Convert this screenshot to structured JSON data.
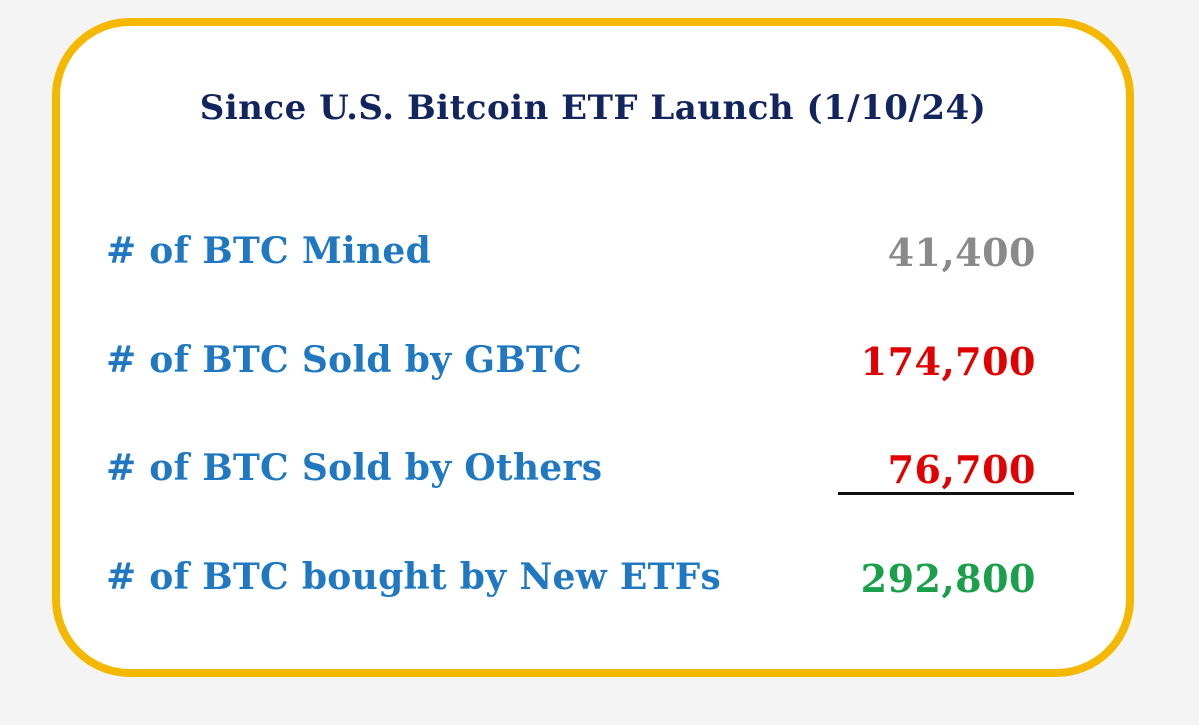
{
  "title": "Since U.S. Bitcoin ETF Launch (1/10/24)",
  "rows": [
    {
      "label": "# of BTC Mined",
      "value": "41,400",
      "color": "#8a8a8a"
    },
    {
      "label": "# of BTC Sold by GBTC",
      "value": "174,700",
      "color": "#e00000"
    },
    {
      "label": "# of BTC Sold by Others",
      "value": "76,700",
      "color": "#e00000"
    },
    {
      "label": "# of BTC bought by New ETFs",
      "value": "292,800",
      "color": "#1aa04a"
    }
  ],
  "colors": {
    "border": "#f5b800",
    "title": "#13255f",
    "label": "#1f78c1"
  }
}
